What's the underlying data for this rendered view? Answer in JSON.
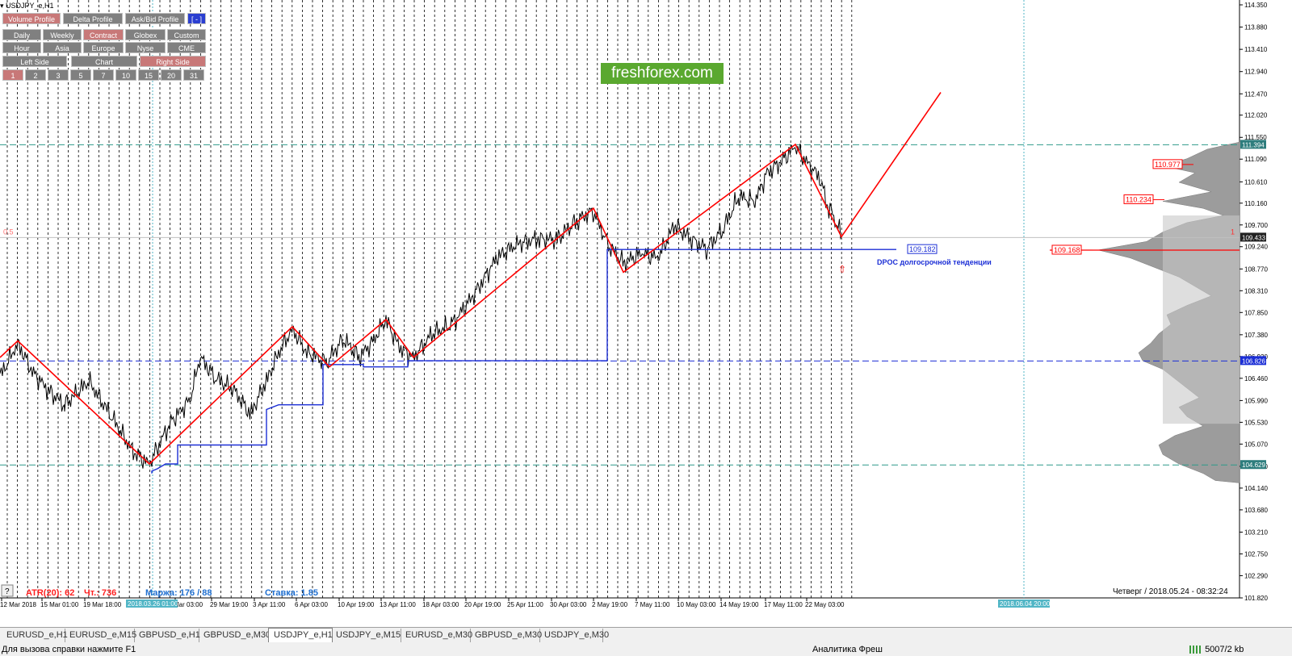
{
  "symbol": "USDJPY_e,H1",
  "logo": "freshforex.com",
  "profile_buttons": [
    "Volume Profile",
    "Delta Profile",
    "Ask/Bid Profile",
    "[ - ]"
  ],
  "period_buttons": [
    "Daily",
    "Weekly",
    "Contract",
    "Globex",
    "Custom"
  ],
  "session_buttons": [
    "Hour",
    "Asia",
    "Europe",
    "Nyse",
    "CME"
  ],
  "side_buttons": [
    "Left Side",
    "Chart",
    "Right Side"
  ],
  "count_buttons": [
    "1",
    "2",
    "3",
    "5",
    "7",
    "10",
    "15",
    "20",
    "31"
  ],
  "price_axis": [
    "114.350",
    "113.880",
    "113.410",
    "112.940",
    "112.470",
    "112.020",
    "111.550",
    "111.090",
    "110.610",
    "110.160",
    "109.700",
    "109.240",
    "108.770",
    "108.310",
    "107.850",
    "107.380",
    "106.920",
    "106.460",
    "105.990",
    "105.530",
    "105.070",
    "104.600",
    "104.140",
    "103.680",
    "103.210",
    "102.750",
    "102.290",
    "101.820"
  ],
  "price_tags": [
    {
      "text": "111.394",
      "color": "#2e7d7d"
    },
    {
      "text": "109.433",
      "color": "#222222"
    },
    {
      "text": "106.826",
      "color": "#1c2fd6"
    },
    {
      "text": "104.629",
      "color": "#2e7d7d"
    }
  ],
  "profile_labels": [
    "110.977",
    "110.234",
    "109.168"
  ],
  "dpoc_value": "109.182",
  "dpoc_caption": "DPOC долгосрочной тенденции",
  "left_marker": "0.5",
  "right_marker": "1",
  "date_axis": [
    "12 Mar 2018",
    "15 Mar 01:00",
    "19 Mar 18:00",
    "Mar 03:00",
    "29 Mar 19:00",
    "3 Apr 11:00",
    "6 Apr 03:00",
    "10 Apr 19:00",
    "13 Apr 11:00",
    "18 Apr 03:00",
    "20 Apr 19:00",
    "25 Apr 11:00",
    "30 Apr 03:00",
    "2 May 19:00",
    "7 May 11:00",
    "10 May 03:00",
    "14 May 19:00",
    "17 May 11:00",
    "22 May 03:00"
  ],
  "date_highlight_left": "2018.03.26 01:00",
  "date_highlight_right": "2018.06.04 20:00",
  "atr": "ATR(20): 62",
  "spread": "Чт.: 736",
  "margin": "Маржа: 176 / 88",
  "rate": "Ставка: 1.85",
  "datetime": "Четверг  /  2018.05.24  -  08:32:24",
  "help_button": "?",
  "tabs": [
    "EURUSD_e,H1",
    "EURUSD_e,M15",
    "GBPUSD_e,H1",
    "GBPUSD_e,M30",
    "USDJPY_e,H1",
    "USDJPY_e,M15",
    "EURUSD_e,M30",
    "GBPUSD_e,M30",
    "USDJPY_e,M30"
  ],
  "active_tab": "USDJPY_e,H1",
  "status_help": "Для вызова справки нажмите F1",
  "status_profile": "Аналитика Фреш",
  "status_traffic": "5007/2 kb",
  "colors": {
    "zigzag": "#ff0000",
    "dpoc": "#1c2fd6",
    "level": "#2e9a8a",
    "profile": "#999999"
  }
}
